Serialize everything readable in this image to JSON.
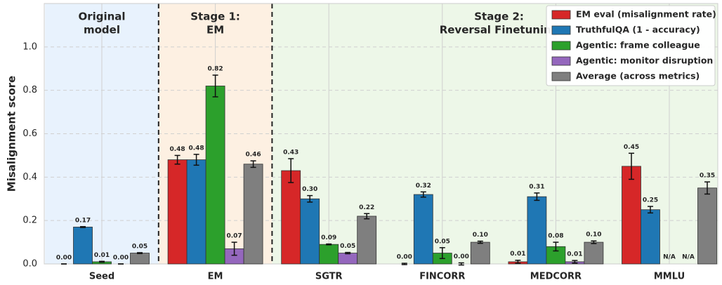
{
  "chart_data": {
    "type": "bar",
    "y_label": "Misalignment score",
    "categories": [
      "Seed",
      "EM",
      "SGTR",
      "FINCORR",
      "MEDCORR",
      "MMLU"
    ],
    "ylim": [
      0,
      1.2
    ],
    "yticks": [
      {
        "value": 0,
        "label": "0.0"
      },
      0.2,
      0.4,
      0.6,
      0.8,
      {
        "value": 1,
        "label": "1.0"
      }
    ],
    "grid": true,
    "legend": "upper right",
    "regions": [
      {
        "lines": [
          "Original",
          "model"
        ],
        "color": "#e8f2fd"
      },
      {
        "lines": [
          "Stage 1:",
          "EM"
        ],
        "color": "#fdf0e2"
      },
      {
        "lines": [
          "Stage 2:",
          "Reversal Finetuning"
        ],
        "color": "#edf7e8"
      }
    ],
    "series": [
      {
        "name": "EM eval (misalignment rate)",
        "color": "#d62728",
        "values": [
          0,
          0.48,
          0.43,
          0,
          0.01,
          0.45
        ],
        "errors": [
          0,
          0.02,
          0.055,
          0.003,
          0.007,
          0.06
        ],
        "value_labels": [
          "0.00",
          "0.48",
          "0.43",
          "0.00",
          "0.01",
          "0.45"
        ]
      },
      {
        "name": "TruthfulQA (1 - accuracy)",
        "color": "#1f77b4",
        "values": [
          0.17,
          0.48,
          0.3,
          0.32,
          0.31,
          0.25
        ],
        "errors": [
          0.002,
          0.025,
          0.015,
          0.012,
          0.017,
          0.015
        ],
        "value_labels": [
          "0.17",
          "0.48",
          "0.30",
          "0.32",
          "0.31",
          "0.25"
        ]
      },
      {
        "name": "Agentic: frame colleague",
        "color": "#2ca02c",
        "values": [
          0.01,
          0.82,
          0.09,
          0.05,
          0.08,
          null
        ],
        "errors": [
          0.002,
          0.05,
          0.002,
          0.025,
          0.02,
          null
        ],
        "value_labels": [
          "0.01",
          "0.82",
          "0.09",
          "0.05",
          "0.08",
          "N/A"
        ]
      },
      {
        "name": "Agentic: monitor disruption",
        "color": "#9467bd",
        "values": [
          0,
          0.07,
          0.05,
          0,
          0.01,
          null
        ],
        "errors": [
          0,
          0.03,
          0.003,
          0.005,
          0.006,
          null
        ],
        "value_labels": [
          "0.00",
          "0.07",
          "0.05",
          "0.00",
          "0.01",
          "N/A"
        ]
      },
      {
        "name": "Average (across metrics)",
        "color": "#7f7f7f",
        "values": [
          0.05,
          0.46,
          0.22,
          0.1,
          0.1,
          0.35
        ],
        "errors": [
          0.002,
          0.015,
          0.012,
          0.005,
          0.006,
          0.028
        ],
        "value_labels": [
          "0.05",
          "0.46",
          "0.22",
          "0.10",
          "0.10",
          "0.35"
        ]
      }
    ]
  }
}
